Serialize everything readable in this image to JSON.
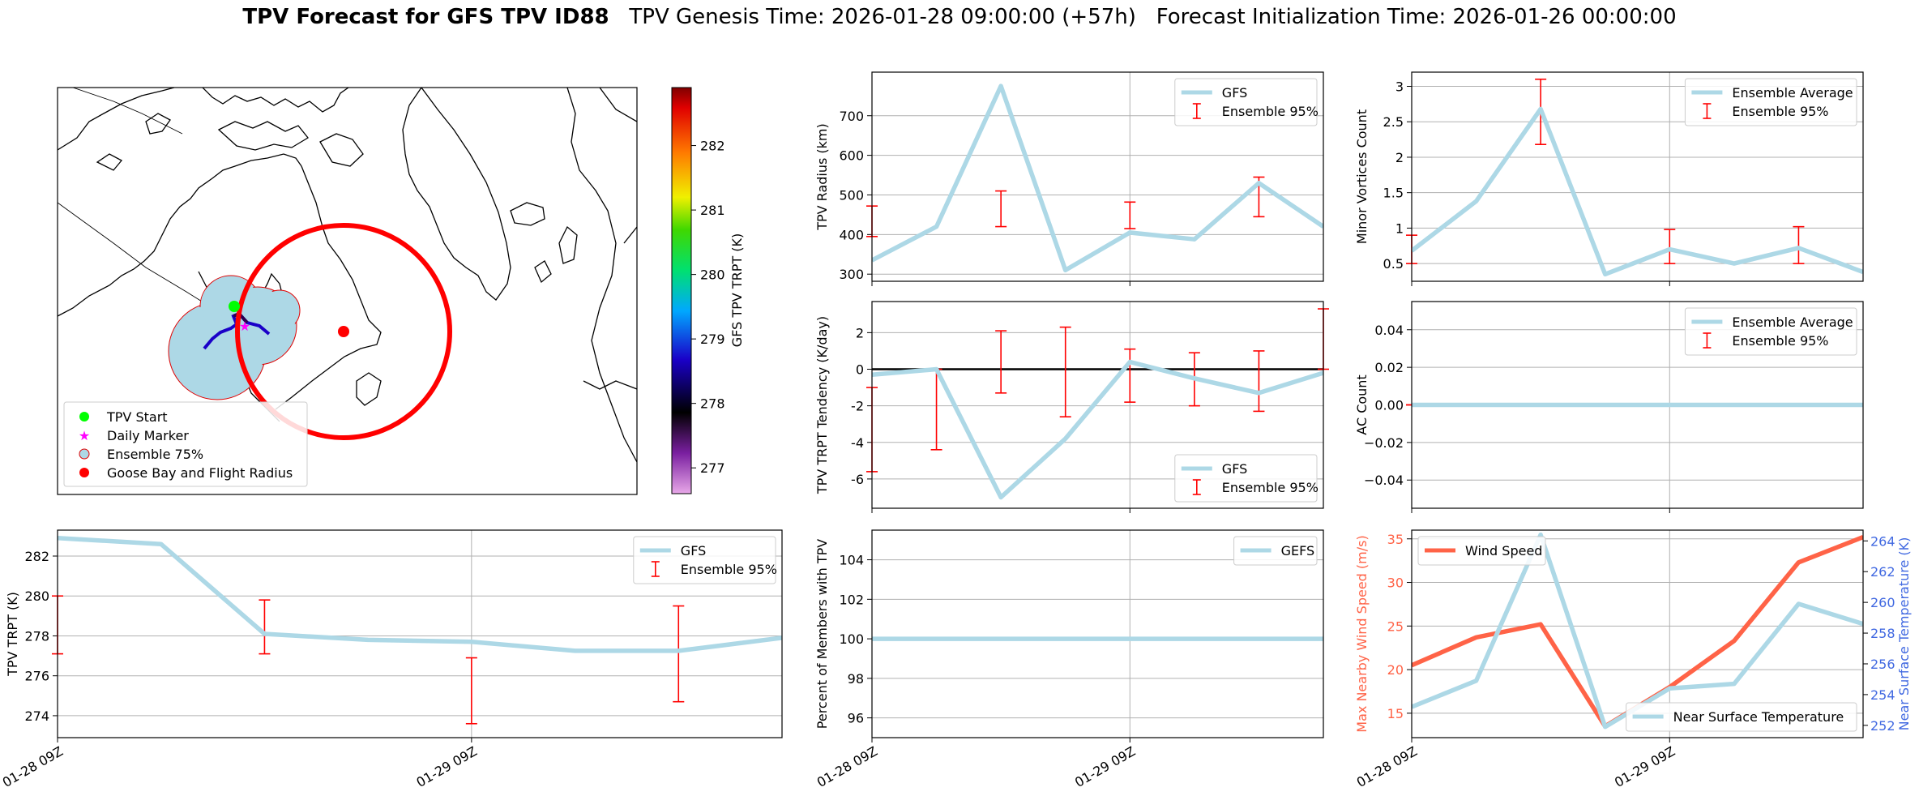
{
  "figure": {
    "title_bold": "TPV Forecast for GFS TPV ID88",
    "title_genesis": "TPV Genesis Time: 2026-01-28 09:00:00 (+57h)",
    "title_init": "Forecast Initialization Time: 2026-01-26 00:00:00"
  },
  "colors": {
    "line_blue": "#add8e6",
    "err_red": "#ff0000",
    "wind_red": "#ff6347",
    "temp_axis_blue": "#4169e1",
    "grid": "#b0b0b0"
  },
  "map": {
    "legend": [
      "TPV Start",
      "Daily Marker",
      "Ensemble 75%",
      "Goose Bay and Flight Radius"
    ],
    "colorbar_label": "GFS TPV TRPT (K)",
    "colorbar_ticks": [
      "277",
      "278",
      "279",
      "280",
      "281",
      "282"
    ],
    "colorbar_range": [
      276.6,
      282.9
    ]
  },
  "chart_data": [
    {
      "id": "radius",
      "type": "line",
      "ylabel": "TPV Radius (km)",
      "ylim": [
        282,
        810
      ],
      "yticks": [
        300,
        400,
        500,
        600,
        700
      ],
      "xticks": [
        {
          "x": 0,
          "label": ""
        },
        {
          "x": 4,
          "label": ""
        }
      ],
      "xgrid": [
        4
      ],
      "series": [
        {
          "name": "GFS",
          "x": [
            0,
            1,
            2,
            3,
            4,
            5,
            6,
            7
          ],
          "values": [
            335,
            420,
            775,
            310,
            405,
            388,
            530,
            420
          ]
        }
      ],
      "errorbars": {
        "name": "Ensemble 95%",
        "x": [
          0,
          2,
          4,
          6
        ],
        "lower": [
          395,
          420,
          415,
          445
        ],
        "upper": [
          472,
          510,
          482,
          545
        ]
      },
      "legend": [
        "GFS",
        "Ensemble 95%"
      ],
      "legend_pos": "top-right"
    },
    {
      "id": "minor",
      "type": "line",
      "ylabel": "Minor Vortices Count",
      "ylim": [
        0.25,
        3.2
      ],
      "yticks": [
        0.5,
        1.0,
        1.5,
        2.0,
        2.5,
        3.0
      ],
      "xticks": [
        {
          "x": 0,
          "label": ""
        },
        {
          "x": 4,
          "label": ""
        }
      ],
      "xgrid": [
        4
      ],
      "series": [
        {
          "name": "Ensemble Average",
          "x": [
            0,
            1,
            2,
            3,
            4,
            5,
            6,
            7
          ],
          "values": [
            0.68,
            1.38,
            2.68,
            0.35,
            0.7,
            0.5,
            0.72,
            0.38
          ]
        }
      ],
      "errorbars": {
        "name": "Ensemble 95%",
        "x": [
          0,
          2,
          4,
          6
        ],
        "lower": [
          0.5,
          2.18,
          0.5,
          0.5
        ],
        "upper": [
          0.9,
          3.1,
          0.98,
          1.02
        ]
      },
      "legend": [
        "Ensemble Average",
        "Ensemble 95%"
      ],
      "legend_pos": "top-right"
    },
    {
      "id": "tend",
      "type": "line",
      "ylabel": "TPV TRPT Tendency (K/day)",
      "ylim": [
        -7.6,
        3.7
      ],
      "yticks": [
        -6,
        -4,
        -2,
        0,
        2
      ],
      "xticks": [
        {
          "x": 0,
          "label": ""
        },
        {
          "x": 4,
          "label": ""
        }
      ],
      "xgrid": [
        4
      ],
      "zeroline": true,
      "series": [
        {
          "name": "GFS",
          "x": [
            0,
            1,
            2,
            3,
            4,
            5,
            6,
            7
          ],
          "values": [
            -0.3,
            0.0,
            -7.0,
            -3.8,
            0.4,
            -0.5,
            -1.3,
            -0.2
          ]
        }
      ],
      "errorbars": {
        "name": "Ensemble 95%",
        "x": [
          0,
          1,
          2,
          3,
          4,
          5,
          6,
          7
        ],
        "lower": [
          -5.6,
          -4.4,
          -1.3,
          -2.6,
          -1.8,
          -2.0,
          -2.3,
          0.0
        ],
        "upper": [
          -1.0,
          0.0,
          2.1,
          2.3,
          1.1,
          0.9,
          1.0,
          3.3
        ]
      },
      "legend": [
        "GFS",
        "Ensemble 95%"
      ],
      "legend_pos": "bottom-right"
    },
    {
      "id": "ac",
      "type": "line",
      "ylabel": "AC Count",
      "ylim": [
        -0.055,
        0.055
      ],
      "yticks": [
        -0.04,
        -0.02,
        0.0,
        0.02,
        0.04
      ],
      "ytick_labels": [
        "−0.04",
        "−0.02",
        "0.00",
        "0.02",
        "0.04"
      ],
      "xticks": [
        {
          "x": 0,
          "label": ""
        },
        {
          "x": 4,
          "label": ""
        }
      ],
      "xgrid": [
        4
      ],
      "series": [
        {
          "name": "Ensemble Average",
          "x": [
            0,
            1,
            2,
            3,
            4,
            5,
            6,
            7
          ],
          "values": [
            0,
            0,
            0,
            0,
            0,
            0,
            0,
            0
          ]
        }
      ],
      "errorbars": {
        "name": "Ensemble 95%",
        "x": [
          0,
          2,
          4,
          6
        ],
        "lower": [
          0,
          0,
          0,
          0
        ],
        "upper": [
          0,
          0,
          0,
          0
        ]
      },
      "legend": [
        "Ensemble Average",
        "Ensemble 95%"
      ],
      "legend_pos": "top-right"
    },
    {
      "id": "trpt",
      "type": "line",
      "ylabel": "TPV TRPT (K)",
      "ylim": [
        272.9,
        283.3
      ],
      "yticks": [
        274,
        276,
        278,
        280,
        282
      ],
      "xticks": [
        {
          "x": 0,
          "label": "01-28 09Z"
        },
        {
          "x": 4,
          "label": "01-29 09Z"
        }
      ],
      "xgrid": [
        4
      ],
      "series": [
        {
          "name": "GFS",
          "x": [
            0,
            1,
            2,
            3,
            4,
            5,
            6,
            7
          ],
          "values": [
            282.9,
            282.6,
            278.1,
            277.8,
            277.7,
            277.25,
            277.25,
            277.9
          ]
        }
      ],
      "errorbars": {
        "name": "Ensemble 95%",
        "x": [
          0,
          2,
          4,
          6
        ],
        "lower": [
          277.1,
          277.1,
          273.6,
          274.7
        ],
        "upper": [
          280.0,
          279.8,
          276.9,
          279.5
        ]
      },
      "legend": [
        "GFS",
        "Ensemble 95%"
      ],
      "legend_pos": "top-right"
    },
    {
      "id": "pct",
      "type": "line",
      "ylabel": "Percent of Members with TPV",
      "ylim": [
        95.0,
        105.5
      ],
      "yticks": [
        96,
        98,
        100,
        102,
        104
      ],
      "xticks": [
        {
          "x": 0,
          "label": "01-28 09Z"
        },
        {
          "x": 4,
          "label": "01-29 09Z"
        }
      ],
      "xgrid": [
        4
      ],
      "series": [
        {
          "name": "GEFS",
          "x": [
            0,
            1,
            2,
            3,
            4,
            5,
            6,
            7
          ],
          "values": [
            100,
            100,
            100,
            100,
            100,
            100,
            100,
            100
          ]
        }
      ],
      "legend": [
        "GEFS"
      ],
      "legend_pos": "top-right"
    },
    {
      "id": "wind",
      "type": "line",
      "ylabel": "Max Nearby Wind Speed (m/s)",
      "ylim": [
        12.2,
        36.0
      ],
      "yticks": [
        15,
        20,
        25,
        30,
        35
      ],
      "xticks": [
        {
          "x": 0,
          "label": "01-28 09Z"
        },
        {
          "x": 4,
          "label": "01-29 09Z"
        }
      ],
      "xgrid": [
        4
      ],
      "series": [
        {
          "name": "Wind Speed",
          "x": [
            0,
            1,
            2,
            3,
            4,
            5,
            6,
            7
          ],
          "values": [
            20.5,
            23.7,
            25.2,
            13.5,
            18.0,
            23.3,
            32.3,
            35.2
          ]
        }
      ],
      "legend": [
        "Wind Speed"
      ],
      "legend_pos": "top-left",
      "secondary": {
        "ylabel": "Near Surface Temperature (K)",
        "ylim": [
          251.2,
          264.7
        ],
        "yticks": [
          252,
          254,
          256,
          258,
          260,
          262,
          264
        ],
        "series": [
          {
            "name": "Near Surface Temperature",
            "x": [
              0,
              1,
              2,
              3,
              4,
              5,
              6,
              7
            ],
            "values": [
              253.2,
              254.9,
              264.4,
              251.9,
              254.4,
              254.7,
              259.9,
              258.6
            ]
          }
        ],
        "legend": [
          "Near Surface Temperature"
        ],
        "legend_pos": "bottom-right"
      }
    }
  ]
}
